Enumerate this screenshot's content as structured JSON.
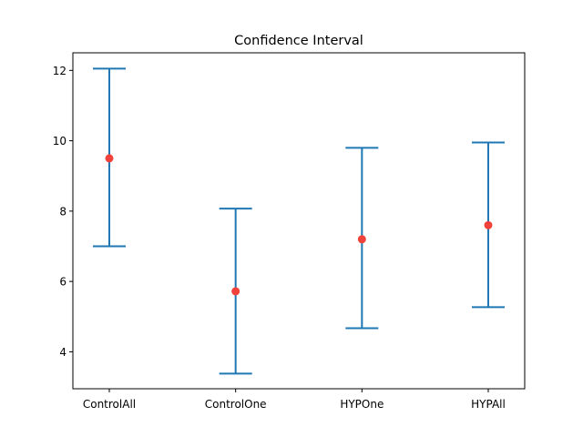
{
  "chart_data": {
    "type": "errorbar",
    "title": "Confidence Interval",
    "xlabel": "",
    "ylabel": "",
    "categories": [
      "ControlAll",
      "ControlOne",
      "HYPOne",
      "HYPAll"
    ],
    "means": [
      9.5,
      5.72,
      7.2,
      7.6
    ],
    "lower": [
      7.0,
      3.38,
      4.67,
      5.27
    ],
    "upper": [
      12.05,
      8.07,
      9.8,
      9.95
    ],
    "ylim": [
      2.95,
      12.5
    ],
    "yticks": [
      4,
      6,
      8,
      10,
      12
    ],
    "grid": false,
    "colors": {
      "interval": "#1f77b4",
      "mean": "#f0413a"
    }
  }
}
